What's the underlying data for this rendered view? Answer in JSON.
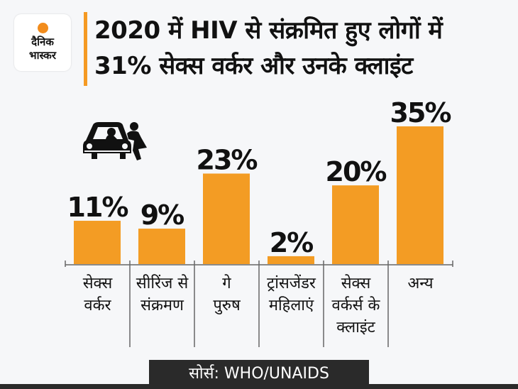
{
  "logo": {
    "line1": "दैनिक",
    "line2": "भास्कर",
    "sun_color": "#f28c1c"
  },
  "title": {
    "line1": "2020 में HIV से संक्रमित हुए लोगों में",
    "line2": "31% सेक्स वर्कर और उनके क्लाइंट"
  },
  "icon": "car-with-person-icon",
  "source": "सोर्स: WHO/UNAIDS",
  "colors": {
    "bar": "#f39c24",
    "accent": "#f59a23",
    "axis": "#666666",
    "text": "#111111",
    "source_bg": "#2a2a2a"
  },
  "chart_data": {
    "type": "bar",
    "title": "2020 में HIV से संक्रमित हुए लोगों में 31% सेक्स वर्कर और उनके क्लाइंट",
    "xlabel": "",
    "ylabel": "",
    "ylim": [
      0,
      35
    ],
    "grid": false,
    "categories": [
      [
        "सेक्स",
        "वर्कर"
      ],
      [
        "सीरिंज से",
        "संक्रमण"
      ],
      [
        "गे",
        "पुरुष"
      ],
      [
        "ट्रांसजेंडर",
        "महिलाएं"
      ],
      [
        "सेक्स",
        "वर्कर्स के",
        "क्लाइंट"
      ],
      [
        "अन्य"
      ]
    ],
    "values": [
      11,
      9,
      23,
      2,
      20,
      35
    ],
    "labels": [
      "11%",
      "9%",
      "23%",
      "2%",
      "20%",
      "35%"
    ]
  }
}
